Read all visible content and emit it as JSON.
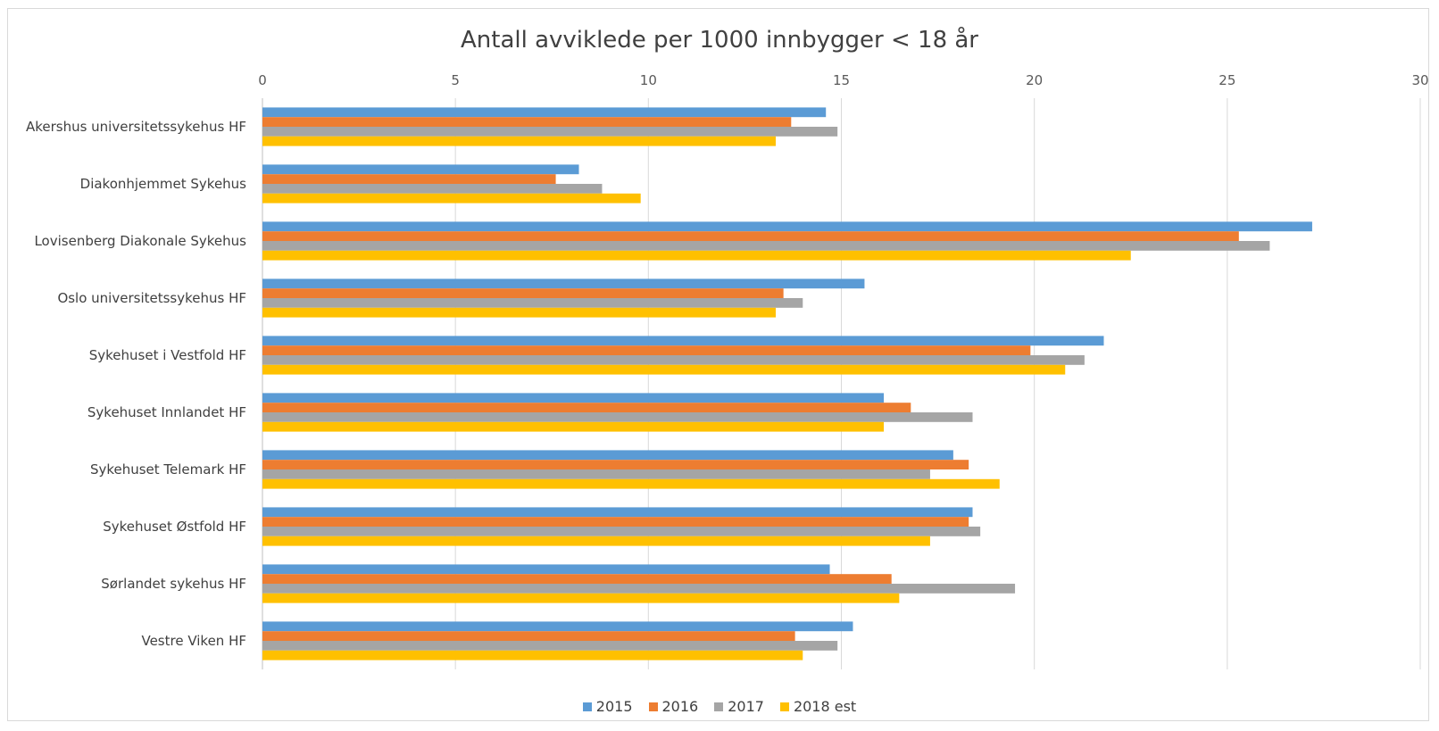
{
  "chart_data": {
    "type": "bar",
    "orientation": "horizontal",
    "title": "Antall avviklede per 1000 innbygger < 18 år",
    "xlim": [
      0,
      30
    ],
    "xticks": [
      0,
      5,
      10,
      15,
      20,
      25,
      30
    ],
    "grid": true,
    "legend_position": "bottom",
    "categories": [
      "Akershus universitetssykehus HF",
      "Diakonhjemmet Sykehus",
      "Lovisenberg Diakonale Sykehus",
      "Oslo universitetssykehus HF",
      "Sykehuset i Vestfold HF",
      "Sykehuset Innlandet HF",
      "Sykehuset Telemark HF",
      "Sykehuset Østfold HF",
      "Sørlandet sykehus HF",
      "Vestre Viken HF"
    ],
    "series": [
      {
        "name": "2015",
        "color": "#5b9bd5",
        "values": [
          14.6,
          8.2,
          27.2,
          15.6,
          21.8,
          16.1,
          17.9,
          18.4,
          14.7,
          15.3
        ]
      },
      {
        "name": "2016",
        "color": "#ed7d31",
        "values": [
          13.7,
          7.6,
          25.3,
          13.5,
          19.9,
          16.8,
          18.3,
          18.3,
          16.3,
          13.8
        ]
      },
      {
        "name": "2017",
        "color": "#a5a5a5",
        "values": [
          14.9,
          8.8,
          26.1,
          14.0,
          21.3,
          18.4,
          17.3,
          18.6,
          19.5,
          14.9
        ]
      },
      {
        "name": "2018 est",
        "color": "#ffc000",
        "values": [
          13.3,
          9.8,
          22.5,
          13.3,
          20.8,
          16.1,
          19.1,
          17.3,
          16.5,
          14.0
        ]
      }
    ]
  }
}
